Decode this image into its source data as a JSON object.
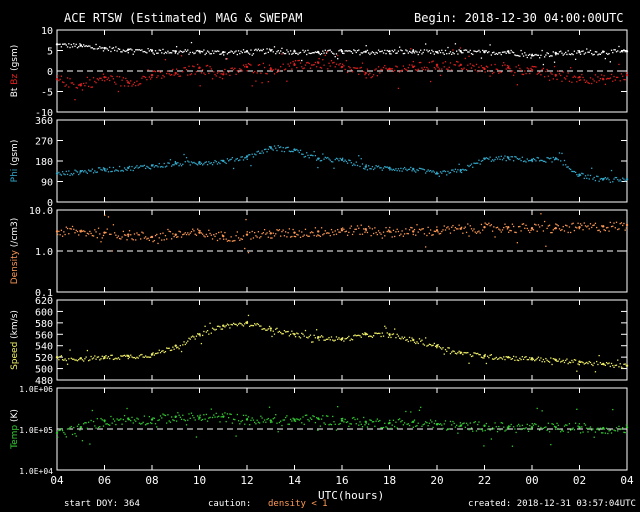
{
  "header": {
    "title": "ACE RTSW (Estimated) MAG & SWEPAM",
    "begin": "Begin: 2018-12-30 04:00:00UTC"
  },
  "footer": {
    "start_doy": "start DOY: 364",
    "caution_label": "caution:",
    "caution_value": "density < 1",
    "created": "created: 2018-12-31 03:57:04UTC",
    "xlabel": "UTC(hours)"
  },
  "colors": {
    "frame": "#ffffff",
    "bt": "#ffffff",
    "bz": "#e02020",
    "phi": "#33aacc",
    "density": "#ff9955",
    "speed": "#eeee66",
    "temp": "#33cc33",
    "caution": "#ff9955"
  },
  "chart_data": [
    {
      "type": "scatter",
      "id": "mag",
      "ylabel_parts": [
        "Bt",
        "Bz",
        "(gsm)"
      ],
      "yticks": [
        "10",
        "5",
        "0",
        "-5",
        "-10"
      ],
      "ylim": [
        -10,
        10
      ],
      "ref_line": 0,
      "series": [
        {
          "name": "Bt",
          "x": [
            0,
            1,
            2,
            3,
            4,
            5,
            6,
            7,
            8,
            9,
            10,
            11,
            12,
            13,
            14,
            15,
            16,
            17,
            18,
            19,
            20,
            21,
            22,
            23,
            24
          ],
          "y": [
            6.5,
            6.2,
            5.6,
            5.2,
            5.0,
            4.8,
            4.8,
            4.6,
            4.8,
            5.0,
            4.8,
            4.6,
            4.8,
            4.7,
            4.8,
            4.8,
            4.6,
            4.8,
            4.6,
            4.8,
            3.8,
            4.4,
            4.6,
            4.7,
            4.8
          ]
        },
        {
          "name": "Bz",
          "x": [
            0,
            1,
            2,
            3,
            4,
            5,
            6,
            7,
            8,
            9,
            10,
            11,
            12,
            13,
            14,
            15,
            16,
            17,
            18,
            19,
            20,
            21,
            22,
            23,
            24
          ],
          "y": [
            -2.0,
            -3.5,
            -1.5,
            -2.8,
            -1.0,
            -0.5,
            0.8,
            -0.8,
            1.0,
            0.5,
            1.5,
            2.0,
            1.0,
            -0.5,
            0.5,
            1.0,
            1.5,
            1.5,
            0.5,
            0.8,
            0.2,
            -1.0,
            -1.5,
            -2.0,
            -1.0
          ]
        }
      ]
    },
    {
      "type": "scatter",
      "id": "phi",
      "ylabel_parts": [
        "Phi",
        "(gsm)"
      ],
      "yticks": [
        "360",
        "270",
        "180",
        "90",
        "0"
      ],
      "ylim": [
        0,
        360
      ],
      "series": [
        {
          "name": "Phi",
          "x": [
            0,
            1,
            2,
            3,
            4,
            5,
            6,
            7,
            8,
            9,
            10,
            11,
            12,
            13,
            14,
            15,
            16,
            17,
            18,
            19,
            20,
            21,
            22,
            23,
            24
          ],
          "y": [
            125,
            135,
            145,
            150,
            160,
            170,
            175,
            180,
            200,
            240,
            230,
            190,
            185,
            155,
            150,
            145,
            125,
            140,
            190,
            195,
            185,
            190,
            120,
            100,
            100
          ]
        }
      ]
    },
    {
      "type": "scatter",
      "id": "density",
      "ylabel_parts": [
        "Density",
        "(/cm3)"
      ],
      "yticks": [
        "10.0",
        "1.0",
        "0.1"
      ],
      "ylim": [
        0.1,
        10
      ],
      "scale": "log",
      "ref_line": 1.0,
      "series": [
        {
          "name": "Density",
          "x": [
            0,
            1,
            2,
            3,
            4,
            5,
            6,
            7,
            8,
            9,
            10,
            11,
            12,
            13,
            14,
            15,
            16,
            17,
            18,
            19,
            20,
            21,
            22,
            23,
            24
          ],
          "y": [
            3.0,
            3.0,
            2.8,
            2.5,
            2.2,
            2.5,
            2.8,
            2.3,
            2.5,
            2.7,
            2.8,
            3.0,
            3.2,
            3.4,
            3.0,
            3.0,
            3.2,
            3.5,
            3.8,
            3.8,
            3.6,
            3.6,
            3.8,
            4.0,
            4.3
          ]
        }
      ]
    },
    {
      "type": "scatter",
      "id": "speed",
      "ylabel_parts": [
        "Speed",
        "(km/s)"
      ],
      "yticks": [
        "620",
        "600",
        "580",
        "560",
        "540",
        "520",
        "500",
        "480"
      ],
      "ylim": [
        480,
        620
      ],
      "series": [
        {
          "name": "Speed",
          "x": [
            0,
            1,
            2,
            3,
            4,
            5,
            6,
            7,
            8,
            9,
            10,
            11,
            12,
            13,
            14,
            15,
            16,
            17,
            18,
            19,
            20,
            21,
            22,
            23,
            24
          ],
          "y": [
            520,
            518,
            520,
            522,
            525,
            540,
            560,
            575,
            580,
            570,
            560,
            555,
            552,
            560,
            560,
            550,
            540,
            528,
            522,
            520,
            518,
            515,
            512,
            508,
            505
          ]
        }
      ]
    },
    {
      "type": "scatter",
      "id": "temp",
      "ylabel_parts": [
        "Temp",
        "(K)"
      ],
      "yticks": [
        "1.0E+06",
        "1.0E+05",
        "1.0E+04"
      ],
      "ylim": [
        10000,
        1000000
      ],
      "scale": "log",
      "ref_line": 100000,
      "series": [
        {
          "name": "Temp",
          "x": [
            0,
            1,
            2,
            3,
            4,
            5,
            6,
            7,
            8,
            9,
            10,
            11,
            12,
            13,
            14,
            15,
            16,
            17,
            18,
            19,
            20,
            21,
            22,
            23,
            24
          ],
          "y": [
            80000,
            110000,
            160000,
            180000,
            170000,
            200000,
            190000,
            200000,
            170000,
            160000,
            170000,
            180000,
            160000,
            150000,
            140000,
            150000,
            130000,
            120000,
            120000,
            110000,
            110000,
            110000,
            110000,
            105000,
            110000
          ]
        }
      ]
    }
  ],
  "xaxis": {
    "ticks": [
      "04",
      "06",
      "08",
      "10",
      "12",
      "14",
      "16",
      "18",
      "20",
      "22",
      "00",
      "02",
      "04"
    ]
  }
}
